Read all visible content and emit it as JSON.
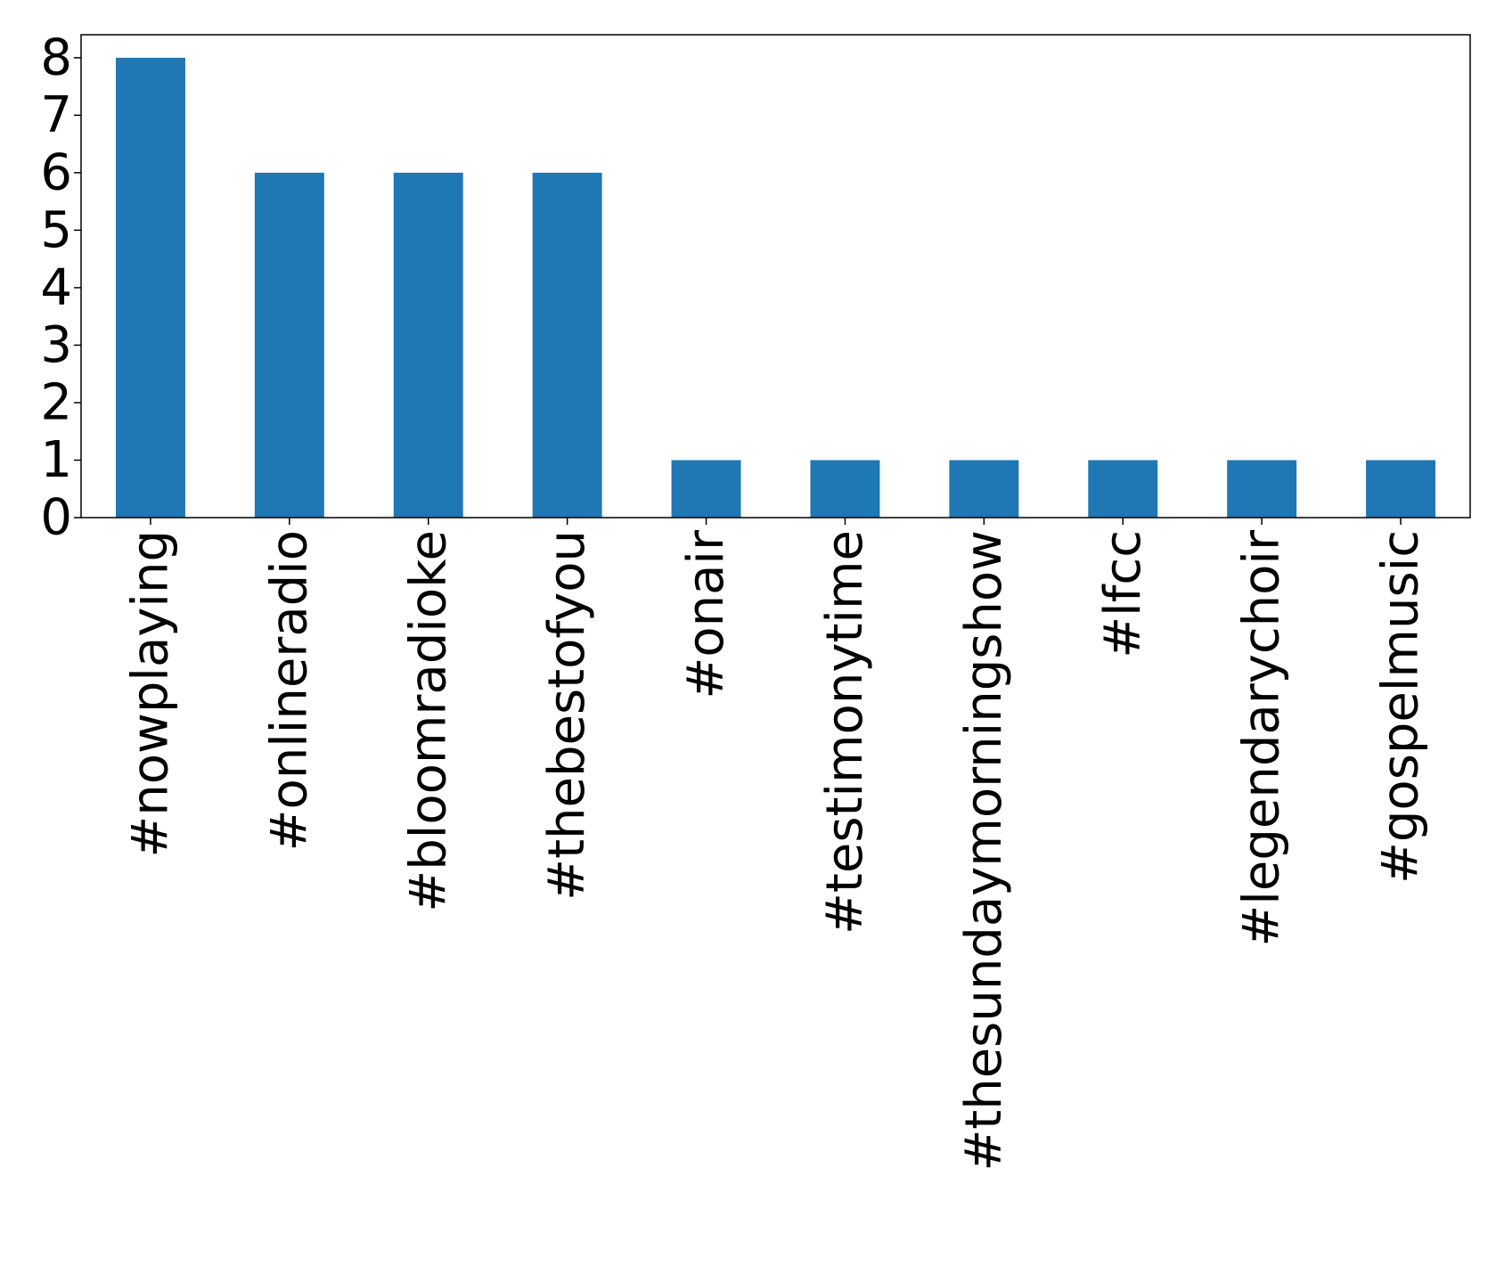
{
  "chart_data": {
    "type": "bar",
    "title": "",
    "xlabel": "",
    "ylabel": "",
    "categories": [
      "#nowplaying",
      "#onlineradio",
      "#bloomradioke",
      "#thebestofyou",
      "#onair",
      "#testimonytime",
      "#thesundaymorningshow",
      "#lfcc",
      "#legendarychoir",
      "#gospelmusic"
    ],
    "values": [
      8,
      6,
      6,
      6,
      1,
      1,
      1,
      1,
      1,
      1
    ],
    "ylim": [
      0,
      8.4
    ],
    "yticks": [
      "0",
      "1",
      "2",
      "3",
      "4",
      "5",
      "6",
      "7",
      "8"
    ],
    "bar_color": "#1f77b4",
    "grid": false,
    "legend": "none"
  }
}
